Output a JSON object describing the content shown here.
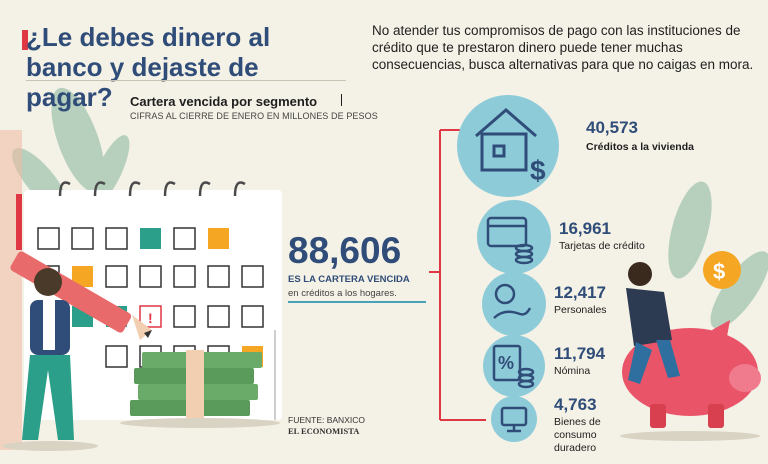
{
  "header": {
    "title": "¿Le debes dinero al banco y dejaste de pagar?",
    "intro": "No atender tus compromisos de pago con las instituciones de crédito que te prestaron dinero puede tener muchas consecuencias, busca alternativas para que no caigas en mora."
  },
  "chart_data": {
    "type": "bar",
    "title": "Cartera vencida por segmento",
    "subtitle": "CIFRAS AL CIERRE DE ENERO EN MILLONES DE PESOS",
    "total": {
      "value": "88,606",
      "label": "ES LA CARTERA VENCIDA",
      "sublabel": "en créditos a los hogares."
    },
    "categories": [
      "Créditos a la vivienda",
      "Tarjetas de crédito",
      "Personales",
      "Nómina",
      "Bienes de consumo duradero"
    ],
    "values": [
      40573,
      16961,
      12417,
      11794,
      4763
    ],
    "value_labels": [
      "40,573",
      "16,961",
      "12,417",
      "11,794",
      "4,763"
    ],
    "icons": [
      "house-dollar-icon",
      "credit-card-coins-icon",
      "hand-coin-icon",
      "percent-coins-icon",
      "monitor-icon"
    ]
  },
  "footer": {
    "source": "FUENTE: BANXICO",
    "brand": "EL ECONOMISTA"
  },
  "colors": {
    "navy": "#2f4d78",
    "teal": "#8ecbd9",
    "red": "#e03744",
    "green": "#2c9f8a",
    "orange": "#f5a623",
    "cream": "#f4f1e6"
  }
}
